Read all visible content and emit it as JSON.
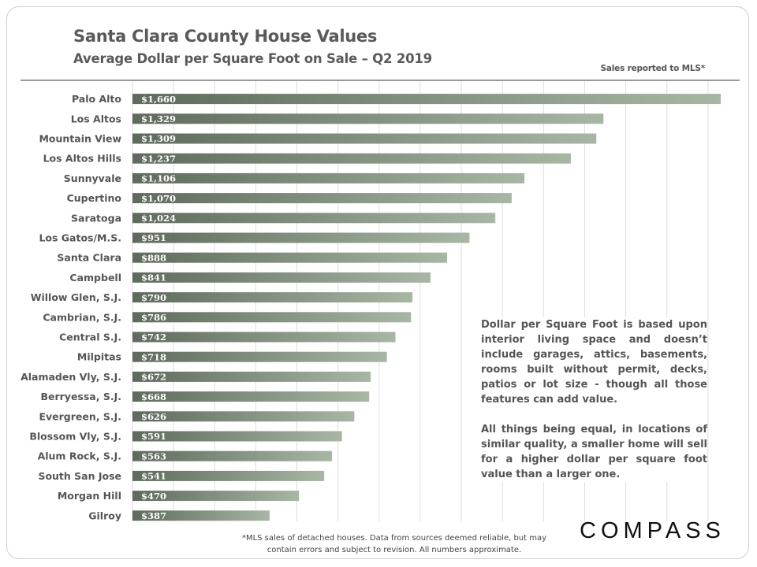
{
  "header": {
    "title": "Santa Clara County House Values",
    "subtitle": "Average Dollar  per Square  Foot on Sale – Q2 2019",
    "source_note": "Sales reported to MLS*"
  },
  "chart_data": {
    "type": "bar",
    "orientation": "horizontal",
    "categories": [
      "Palo Alto",
      "Los Altos",
      "Mountain View",
      "Los Altos Hills",
      "Sunnyvale",
      "Cupertino",
      "Saratoga",
      "Los Gatos/M.S.",
      "Santa Clara",
      "Campbell",
      "Willow Glen, S.J.",
      "Cambrian, S.J.",
      "Central S.J.",
      "Milpitas",
      "Alamaden Vly, S.J.",
      "Berryessa, S.J.",
      "Evergreen, S.J.",
      "Blossom Vly, S.J.",
      "Alum Rock, S.J.",
      "South San Jose",
      "Morgan Hill",
      "Gilroy"
    ],
    "values": [
      1660,
      1329,
      1309,
      1237,
      1106,
      1070,
      1024,
      951,
      888,
      841,
      790,
      786,
      742,
      718,
      672,
      668,
      626,
      591,
      563,
      541,
      470,
      387
    ],
    "value_labels": [
      "$1,660",
      "$1,329",
      "$1,309",
      "$1,237",
      "$1,106",
      "$1,070",
      "$1,024",
      "$951",
      "$888",
      "$841",
      "$790",
      "$786",
      "$742",
      "$718",
      "$672",
      "$668",
      "$626",
      "$591",
      "$563",
      "$541",
      "$470",
      "$387"
    ],
    "title": "Santa Clara County House Values",
    "subtitle": "Average Dollar  per Square  Foot on Sale – Q2 2019",
    "xlim": [
      0,
      1700
    ],
    "grid": "vertical",
    "colors": {
      "bar_start": "#5e6b5c",
      "bar_end": "#a7b7a3",
      "grid": "#dedede"
    }
  },
  "notes": {
    "paragraph1": "Dollar per Square Foot is based upon interior living space and doesn’t include garages, attics, basements, rooms built without permit, decks, patios or lot size - though all those features can add value.",
    "paragraph2": "All things being equal, in locations of similar quality, a smaller home will sell for a higher dollar per square foot value than a larger one."
  },
  "footnote": {
    "line1": "*MLS sales of detached houses. Data from sources deemed reliable, but may",
    "line2": "contain errors and subject to revision. All numbers approximate."
  },
  "brand": {
    "logo": "COMPASS"
  }
}
